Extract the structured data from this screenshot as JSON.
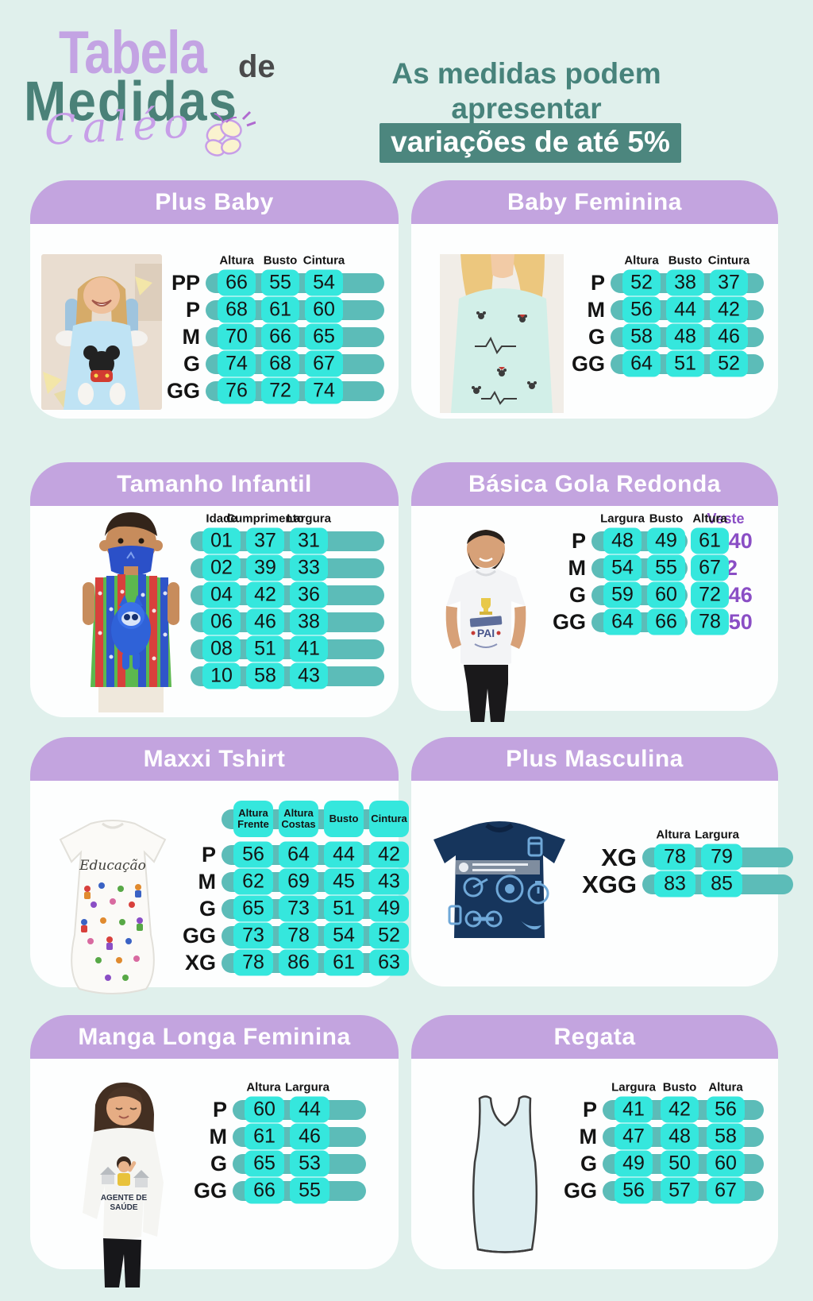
{
  "logo": {
    "word1": "Tabela",
    "word2": "de",
    "word3": "Medidas",
    "brand": "Caléo"
  },
  "notice": {
    "line1": "As medidas podem",
    "line2_plain": "apresentar",
    "line2_highlight": "variações de até 5%"
  },
  "colors": {
    "background": "#e0f0ec",
    "card_header_purple": "#c3a4df",
    "pill_teal": "#5cbcb8",
    "cell_cyan": "#35e7dd",
    "notice_teal": "#47837b",
    "veste_purple": "#8a4ec5",
    "logo_purple": "#c3a3e3",
    "logo_teal": "#4a8178",
    "logo_gray": "#4a4a4b"
  },
  "cards": [
    {
      "id": "plus-baby",
      "title": "Plus Baby",
      "columns": [
        "Altura",
        "Busto",
        "Cintura"
      ],
      "rows": [
        {
          "label": "PP",
          "values": [
            "66",
            "55",
            "54"
          ]
        },
        {
          "label": "P",
          "values": [
            "68",
            "61",
            "60"
          ]
        },
        {
          "label": "M",
          "values": [
            "70",
            "66",
            "65"
          ]
        },
        {
          "label": "G",
          "values": [
            "74",
            "68",
            "67"
          ]
        },
        {
          "label": "GG",
          "values": [
            "76",
            "72",
            "74"
          ]
        }
      ]
    },
    {
      "id": "baby-feminina",
      "title": "Baby Feminina",
      "columns": [
        "Altura",
        "Busto",
        "Cintura"
      ],
      "rows": [
        {
          "label": "P",
          "values": [
            "52",
            "38",
            "37"
          ]
        },
        {
          "label": "M",
          "values": [
            "56",
            "44",
            "42"
          ]
        },
        {
          "label": "G",
          "values": [
            "58",
            "48",
            "46"
          ]
        },
        {
          "label": "GG",
          "values": [
            "64",
            "51",
            "52"
          ]
        }
      ]
    },
    {
      "id": "tamanho-infantil",
      "title": "Tamanho Infantil",
      "columns": [
        "Idade",
        "Cumprimento",
        "Largura"
      ],
      "rows": [
        {
          "label": "",
          "values": [
            "01",
            "37",
            "31"
          ]
        },
        {
          "label": "",
          "values": [
            "02",
            "39",
            "33"
          ]
        },
        {
          "label": "",
          "values": [
            "04",
            "42",
            "36"
          ]
        },
        {
          "label": "",
          "values": [
            "06",
            "46",
            "38"
          ]
        },
        {
          "label": "",
          "values": [
            "08",
            "51",
            "41"
          ]
        },
        {
          "label": "",
          "values": [
            "10",
            "58",
            "43"
          ]
        }
      ]
    },
    {
      "id": "basica-gola-redonda",
      "title": "Básica Gola Redonda",
      "columns": [
        "Largura",
        "Busto",
        "Altura"
      ],
      "extra_column": "Veste",
      "rows": [
        {
          "label": "P",
          "values": [
            "48",
            "49",
            "61"
          ],
          "veste": "38/40"
        },
        {
          "label": "M",
          "values": [
            "54",
            "55",
            "67"
          ],
          "veste": "42"
        },
        {
          "label": "G",
          "values": [
            "59",
            "60",
            "72"
          ],
          "veste": "44/46"
        },
        {
          "label": "GG",
          "values": [
            "64",
            "66",
            "78"
          ],
          "veste": "48/50"
        }
      ]
    },
    {
      "id": "maxxi-tshirt",
      "title": "Maxxi Tshirt",
      "header_style": "pills",
      "columns": [
        "Altura Frente",
        "Altura Costas",
        "Busto",
        "Cintura"
      ],
      "rows": [
        {
          "label": "P",
          "values": [
            "56",
            "64",
            "44",
            "42"
          ]
        },
        {
          "label": "M",
          "values": [
            "62",
            "69",
            "45",
            "43"
          ]
        },
        {
          "label": "G",
          "values": [
            "65",
            "73",
            "51",
            "49"
          ]
        },
        {
          "label": "GG",
          "values": [
            "73",
            "78",
            "54",
            "52"
          ]
        },
        {
          "label": "XG",
          "values": [
            "78",
            "86",
            "61",
            "63"
          ]
        }
      ]
    },
    {
      "id": "plus-masculina",
      "title": "Plus Masculina",
      "columns": [
        "Altura",
        "Largura"
      ],
      "rows": [
        {
          "label": "XG",
          "values": [
            "78",
            "79"
          ]
        },
        {
          "label": "XGG",
          "values": [
            "83",
            "85"
          ]
        }
      ]
    },
    {
      "id": "manga-longa-feminina",
      "title": "Manga Longa Feminina",
      "columns": [
        "Altura",
        "Largura"
      ],
      "rows": [
        {
          "label": "P",
          "values": [
            "60",
            "44"
          ]
        },
        {
          "label": "M",
          "values": [
            "61",
            "46"
          ]
        },
        {
          "label": "G",
          "values": [
            "65",
            "53"
          ]
        },
        {
          "label": "GG",
          "values": [
            "66",
            "55"
          ]
        }
      ]
    },
    {
      "id": "regata",
      "title": "Regata",
      "columns": [
        "Largura",
        "Busto",
        "Altura"
      ],
      "rows": [
        {
          "label": "P",
          "values": [
            "41",
            "42",
            "56"
          ]
        },
        {
          "label": "M",
          "values": [
            "47",
            "48",
            "58"
          ]
        },
        {
          "label": "G",
          "values": [
            "49",
            "50",
            "60"
          ]
        },
        {
          "label": "GG",
          "values": [
            "56",
            "57",
            "67"
          ]
        }
      ]
    }
  ]
}
